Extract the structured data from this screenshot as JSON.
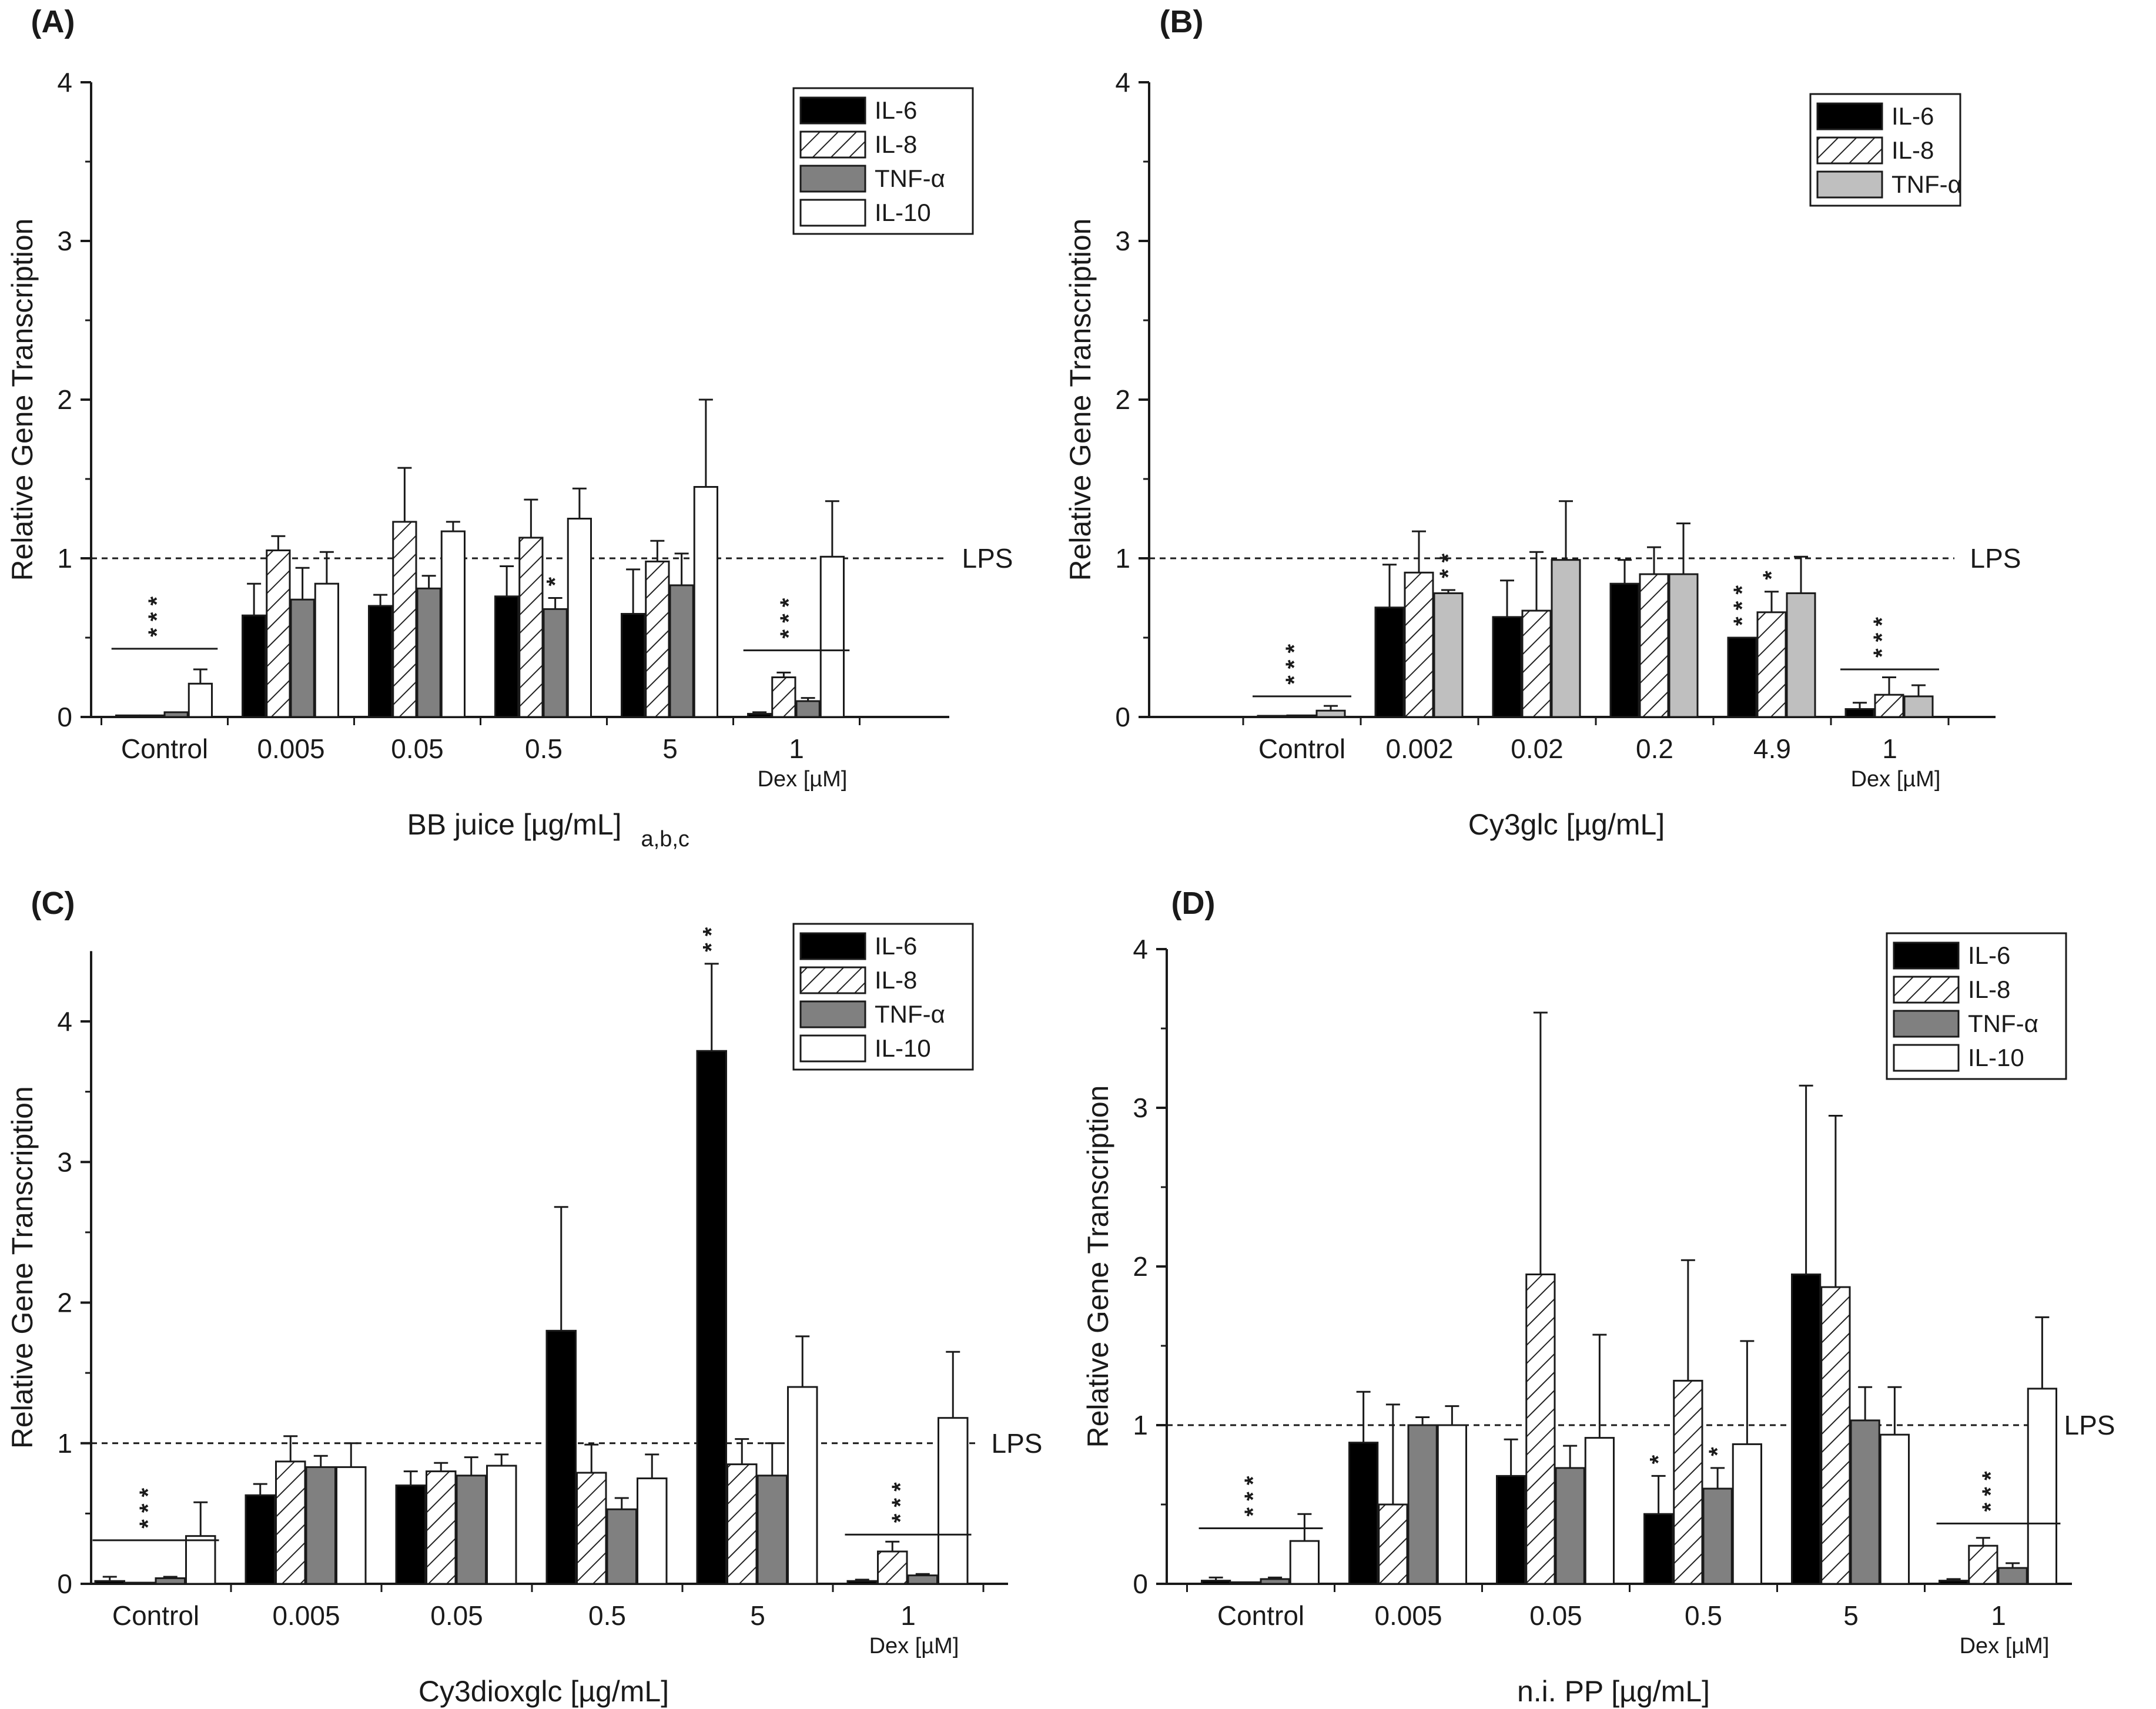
{
  "colors": {
    "IL-6": "#000000",
    "IL-8": "hatch",
    "TNF-α": "#808080",
    "TNF-α-light": "#bfbfbf",
    "IL-10": "#ffffff"
  },
  "chart_data": [
    {
      "type": "bar",
      "panel": "(A)",
      "xlabel": "BB juice [µg/mL]",
      "ylabel": "Relative Gene Transcription",
      "ylim": [
        0,
        4
      ],
      "yticks": [
        "0",
        "1",
        "2",
        "3",
        "4"
      ],
      "categories": [
        "Control",
        "0.005",
        "0.05",
        "0.5",
        "5",
        "1"
      ],
      "dex_label": "Dex [µM]",
      "reference_line": {
        "value": 1,
        "label": "LPS"
      },
      "legend": [
        "IL-6",
        "IL-8",
        "TNF-α",
        "IL-10"
      ],
      "series": [
        {
          "name": "IL-6",
          "values": [
            0.01,
            0.64,
            0.7,
            0.76,
            0.65,
            0.02
          ],
          "errors": [
            0,
            0.2,
            0.07,
            0.19,
            0.28,
            0.01
          ]
        },
        {
          "name": "IL-8",
          "values": [
            0.01,
            1.05,
            1.23,
            1.13,
            0.98,
            0.25
          ],
          "errors": [
            0,
            0.09,
            0.34,
            0.24,
            0.13,
            0.03
          ]
        },
        {
          "name": "TNF-α",
          "values": [
            0.03,
            0.74,
            0.81,
            0.68,
            0.83,
            0.1
          ],
          "errors": [
            0,
            0.2,
            0.08,
            0.07,
            0.2,
            0.02
          ]
        },
        {
          "name": "IL-10",
          "values": [
            0.21,
            0.84,
            1.17,
            1.25,
            1.45,
            1.01
          ],
          "errors": [
            0.09,
            0.2,
            0.06,
            0.19,
            0.55,
            0.35
          ]
        }
      ],
      "annotations": [
        {
          "category": "Control",
          "text": "* * *",
          "type": "group-bar",
          "value": 0.43
        },
        {
          "category": "0.5",
          "series": "TNF-α",
          "text": "*"
        },
        {
          "category": "1",
          "text": "* * *",
          "type": "group-bar",
          "value": 0.42
        }
      ]
    },
    {
      "type": "bar",
      "panel": "(B)",
      "xlabel": "Cy3glc [µg/mL]",
      "ylabel": "Relative Gene Transcription",
      "ylim": [
        0,
        4
      ],
      "yticks": [
        "0",
        "1",
        "2",
        "3",
        "4"
      ],
      "categories": [
        "Control",
        "0.002",
        "0.02",
        "0.2",
        "4.9",
        "1"
      ],
      "dex_label": "Dex [µM]",
      "reference_line": {
        "value": 1,
        "label": "LPS"
      },
      "legend": [
        "IL-6",
        "IL-8",
        "TNF-α"
      ],
      "series": [
        {
          "name": "IL-6",
          "values": [
            0.0,
            0.69,
            0.63,
            0.84,
            0.5,
            0.05
          ],
          "errors": [
            0,
            0.27,
            0.23,
            0.15,
            0,
            0.04
          ]
        },
        {
          "name": "IL-8",
          "values": [
            0.01,
            0.91,
            0.67,
            0.9,
            0.66,
            0.14
          ],
          "errors": [
            0,
            0.26,
            0.37,
            0.17,
            0.13,
            0.11
          ]
        },
        {
          "name": "TNF-α",
          "values": [
            0.04,
            0.78,
            0.99,
            0.9,
            0.78,
            0.13
          ],
          "errors": [
            0.03,
            0.02,
            0.37,
            0.32,
            0.23,
            0.07
          ]
        }
      ],
      "annotations": [
        {
          "category": "Control",
          "text": "* * *",
          "type": "group-bar",
          "value": 0.13
        },
        {
          "category": "0.002",
          "series": "TNF-α",
          "text": "* *"
        },
        {
          "category": "4.9",
          "series": "IL-6",
          "text": "* * *"
        },
        {
          "category": "4.9",
          "series": "IL-8",
          "text": "*"
        },
        {
          "category": "1",
          "text": "* * *",
          "type": "group-bar",
          "value": 0.3
        }
      ]
    },
    {
      "type": "bar",
      "panel": "(C)",
      "xlabel": "Cy3dioxglc [µg/mL]",
      "ylabel": "Relative Gene Transcription",
      "ylim": [
        0,
        4.5
      ],
      "yticks": [
        "0",
        "1",
        "2",
        "3",
        "4"
      ],
      "categories": [
        "Control",
        "0.005",
        "0.05",
        "0.5",
        "5",
        "1"
      ],
      "dex_label": "Dex [µM]",
      "reference_line": {
        "value": 1,
        "label": "LPS"
      },
      "legend": [
        "IL-6",
        "IL-8",
        "TNF-α",
        "IL-10"
      ],
      "series": [
        {
          "name": "IL-6",
          "values": [
            0.02,
            0.63,
            0.7,
            1.8,
            3.79,
            0.02
          ],
          "errors": [
            0.03,
            0.08,
            0.1,
            0.88,
            0.62,
            0.01
          ]
        },
        {
          "name": "IL-8",
          "values": [
            0.0,
            0.87,
            0.8,
            0.79,
            0.85,
            0.23
          ],
          "errors": [
            0,
            0.18,
            0.06,
            0.2,
            0.18,
            0.07
          ]
        },
        {
          "name": "TNF-α",
          "values": [
            0.04,
            0.83,
            0.77,
            0.53,
            0.77,
            0.06
          ],
          "errors": [
            0.01,
            0.08,
            0.13,
            0.08,
            0.23,
            0.01
          ]
        },
        {
          "name": "IL-10",
          "values": [
            0.34,
            0.83,
            0.84,
            0.75,
            1.4,
            1.18
          ],
          "errors": [
            0.24,
            0.17,
            0.08,
            0.17,
            0.36,
            0.47
          ]
        }
      ],
      "annotations": [
        {
          "category": "Control",
          "text": "* * *",
          "type": "group-bar",
          "value": 0.31
        },
        {
          "category": "5",
          "series": "IL-6",
          "text": "* *"
        },
        {
          "category": "5",
          "series": "IL-6",
          "text": "a,b,c"
        },
        {
          "category": "1",
          "text": "* * *",
          "type": "group-bar",
          "value": 0.35
        }
      ]
    },
    {
      "type": "bar",
      "panel": "(D)",
      "xlabel": "n.i. PP [µg/mL]",
      "ylabel": "Relative Gene Transcription",
      "ylim": [
        0,
        4
      ],
      "yticks": [
        "0",
        "1",
        "2",
        "3",
        "4"
      ],
      "categories": [
        "Control",
        "0.005",
        "0.05",
        "0.5",
        "5",
        "1"
      ],
      "dex_label": "Dex [µM]",
      "reference_line": {
        "value": 1,
        "label": "LPS"
      },
      "legend": [
        "IL-6",
        "IL-8",
        "TNF-α",
        "IL-10"
      ],
      "series": [
        {
          "name": "IL-6",
          "values": [
            0.02,
            0.89,
            0.68,
            0.44,
            1.95,
            0.02
          ],
          "errors": [
            0.02,
            0.32,
            0.23,
            0.24,
            1.19,
            0.01
          ]
        },
        {
          "name": "IL-8",
          "values": [
            0.01,
            0.5,
            1.95,
            1.28,
            1.87,
            0.24
          ],
          "errors": [
            0,
            0.63,
            1.65,
            0.76,
            1.08,
            0.05
          ]
        },
        {
          "name": "TNF-α",
          "values": [
            0.03,
            1.0,
            0.73,
            0.6,
            1.03,
            0.1
          ],
          "errors": [
            0.01,
            0.05,
            0.14,
            0.13,
            0.21,
            0.03
          ]
        },
        {
          "name": "IL-10",
          "values": [
            0.27,
            1.0,
            0.92,
            0.88,
            0.94,
            1.23
          ],
          "errors": [
            0.17,
            0.12,
            0.65,
            0.65,
            0.3,
            0.45
          ]
        }
      ],
      "annotations": [
        {
          "category": "Control",
          "text": "* * *",
          "type": "group-bar",
          "value": 0.35
        },
        {
          "category": "0.5",
          "series": "IL-6",
          "text": "*"
        },
        {
          "category": "0.5",
          "series": "TNF-α",
          "text": "*"
        },
        {
          "category": "1",
          "text": "* * *",
          "type": "group-bar",
          "value": 0.38
        }
      ]
    }
  ]
}
